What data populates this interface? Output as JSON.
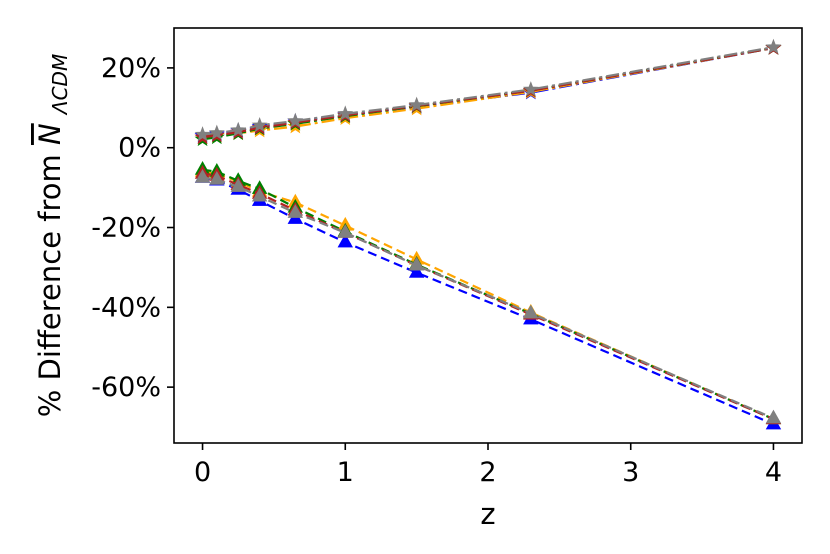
{
  "chart_data": {
    "type": "line",
    "xlabel": "z",
    "ylabel_prefix": "% Difference from ",
    "ylabel_symbol": "N",
    "ylabel_subscript": "ΛCDM",
    "xlim": [
      -0.2,
      4.2
    ],
    "ylim": [
      -74,
      30
    ],
    "x_ticks": [
      0,
      1,
      2,
      3,
      4
    ],
    "x_tick_labels": [
      "0",
      "1",
      "2",
      "3",
      "4"
    ],
    "y_ticks": [
      20,
      0,
      -20,
      -40,
      -60
    ],
    "y_tick_labels": [
      "20%",
      "0%",
      "-20%",
      "-40%",
      "-60%"
    ],
    "x": [
      0,
      0.1,
      0.25,
      0.4,
      0.65,
      1,
      1.5,
      2.3,
      4
    ],
    "series": [
      {
        "color": "#0000ff",
        "style": "dashdot",
        "marker": "star",
        "values": [
          3.0,
          3.4,
          4.3,
          5.3,
          6.6,
          8.2,
          10.2,
          13.8,
          25.0
        ]
      },
      {
        "color": "#ffa500",
        "style": "dashdot",
        "marker": "star",
        "values": [
          2.6,
          3.0,
          3.6,
          4.3,
          5.3,
          7.4,
          9.8,
          14.0,
          25.0
        ]
      },
      {
        "color": "#008000",
        "style": "dashdot",
        "marker": "star",
        "values": [
          2.1,
          2.6,
          3.6,
          4.8,
          6.0,
          7.9,
          10.4,
          14.3,
          25.0
        ]
      },
      {
        "color": "#b22222",
        "style": "dashdot",
        "marker": "star",
        "values": [
          2.6,
          3.1,
          3.9,
          5.0,
          6.3,
          8.1,
          10.5,
          14.3,
          25.0
        ]
      },
      {
        "color": "#808080",
        "style": "dashdot",
        "marker": "star",
        "values": [
          3.3,
          3.7,
          4.4,
          5.6,
          6.7,
          8.5,
          10.7,
          14.6,
          25.2
        ]
      },
      {
        "color": "#0000ff",
        "style": "dashed",
        "marker": "triangle",
        "values": [
          -7.5,
          -8.2,
          -10.5,
          -13.3,
          -17.8,
          -23.7,
          -31.3,
          -43.0,
          -69.3
        ]
      },
      {
        "color": "#ffa500",
        "style": "dashed",
        "marker": "triangle",
        "values": [
          -6.0,
          -6.5,
          -8.5,
          -11.0,
          -13.7,
          -19.5,
          -28.0,
          -41.3,
          -68.0
        ]
      },
      {
        "color": "#008000",
        "style": "dashed",
        "marker": "triangle",
        "values": [
          -5.5,
          -6.0,
          -8.3,
          -10.3,
          -15.0,
          -21.0,
          -29.3,
          -41.6,
          -68.0
        ]
      },
      {
        "color": "#b22222",
        "style": "dashed",
        "marker": "triangle",
        "values": [
          -6.5,
          -7.0,
          -9.3,
          -11.5,
          -15.7,
          -21.3,
          -29.5,
          -41.8,
          -68.0
        ]
      },
      {
        "color": "#808080",
        "style": "dashed",
        "marker": "triangle",
        "values": [
          -7.5,
          -8.0,
          -9.8,
          -12.2,
          -16.3,
          -21.3,
          -29.5,
          -41.5,
          -67.8
        ]
      }
    ],
    "grid": false,
    "legend": "none"
  }
}
